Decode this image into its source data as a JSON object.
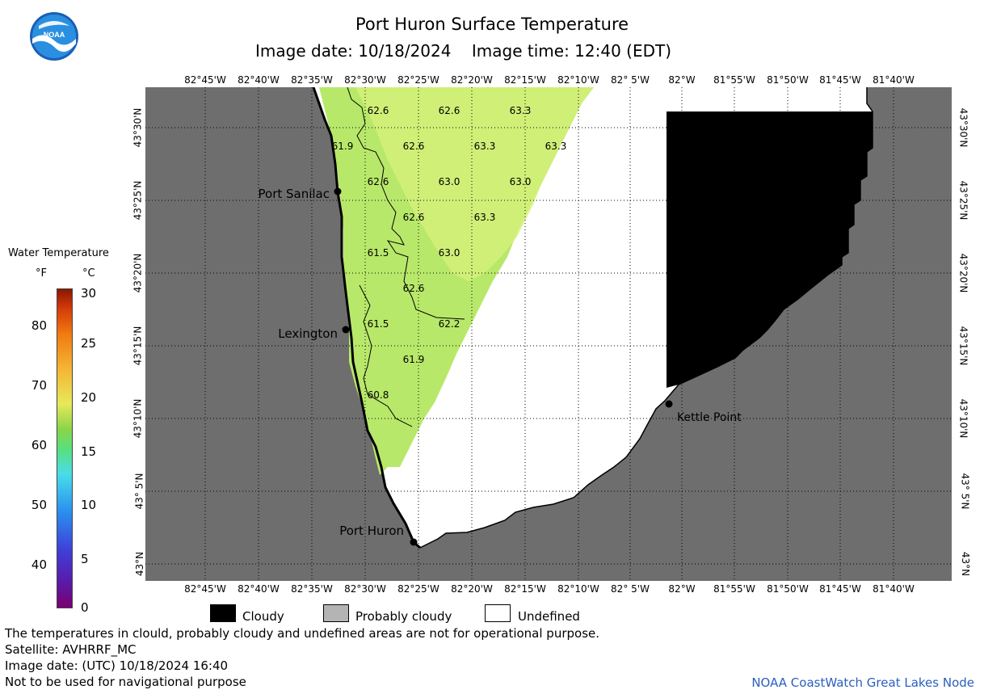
{
  "header": {
    "title": "Port Huron Surface Temperature",
    "date_label": "Image date: 10/18/2024",
    "time_label": "Image time: 12:40 (EDT)"
  },
  "logo": {
    "text": "NOAA",
    "icon": "noaa-logo"
  },
  "axes": {
    "lon_ticks": [
      "82°45'W",
      "82°40'W",
      "82°35'W",
      "82°30'W",
      "82°25'W",
      "82°20'W",
      "82°15'W",
      "82°10'W",
      "82° 5'W",
      "82°W",
      "81°55'W",
      "81°50'W",
      "81°45'W",
      "81°40'W"
    ],
    "lat_ticks": [
      "43°30'N",
      "43°25'N",
      "43°20'N",
      "43°15'N",
      "43°10'N",
      "43° 5'N",
      "43°N"
    ]
  },
  "places": [
    {
      "name": "Port Sanilac"
    },
    {
      "name": "Lexington"
    },
    {
      "name": "Port Huron"
    },
    {
      "name": "Kettle Point"
    }
  ],
  "temperature_labels": [
    "62.6",
    "62.6",
    "63.3",
    "61.9",
    "62.6",
    "63.3",
    "63.3",
    "62.6",
    "63.0",
    "63.0",
    "62.6",
    "63.3",
    "61.5",
    "63.0",
    "62.6",
    "61.5",
    "62.2",
    "61.9",
    "60.8"
  ],
  "colorbar": {
    "title": "Water Temperature",
    "unit_f": "°F",
    "unit_c": "°C",
    "f_ticks": [
      "80",
      "70",
      "60",
      "50",
      "40"
    ],
    "c_ticks": [
      "30",
      "25",
      "20",
      "15",
      "10",
      "5",
      "0"
    ]
  },
  "legend": {
    "cloudy": "Cloudy",
    "probably_cloudy": "Probably cloudy",
    "undefined": "Undefined",
    "colors": {
      "cloudy": "#000000",
      "probably_cloudy": "#b4b4b4",
      "undefined": "#ffffff",
      "land": "#6e6e6e"
    }
  },
  "footer": {
    "line1": "The temperatures in clould, probably cloudy and undefined areas are not for operational purpose.",
    "line2": "Satellite: AVHRRF_MC",
    "line3": "Image date: (UTC) 10/18/2024  16:40",
    "line4": "Not to be used for navigational purpose",
    "credit": "NOAA CoastWatch Great Lakes Node"
  }
}
